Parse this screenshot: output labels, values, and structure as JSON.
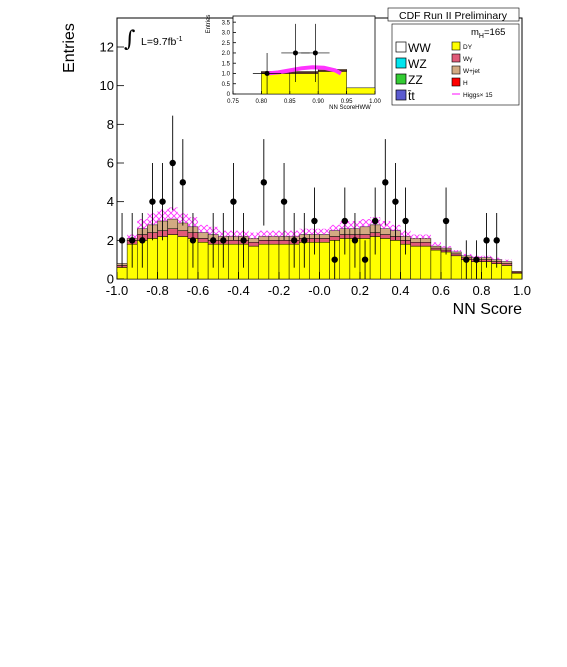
{
  "header": {
    "title": "CDF Run II Preliminary",
    "mass_label_prefix": "m",
    "mass_label_sub": "H",
    "mass_label_value": "=165",
    "lumi_prefix": "L=9.7fb",
    "lumi_exp": "-1"
  },
  "colors": {
    "WW": "#ffffff",
    "WZ": "#00e5ee",
    "ZZ": "#33cc33",
    "ttbar": "#5a5ad0",
    "DY": "#ffff00",
    "Wgamma": "#e05a78",
    "Wjet": "#d2aa82",
    "H": "#ff0000",
    "higgs_line": "#ff33ff",
    "data": "#000000"
  },
  "chart_data": [
    {
      "type": "bar",
      "title": "",
      "xlabel": "NN Score",
      "ylabel": "Entries",
      "xlim": [
        -1.0,
        1.0
      ],
      "ylim": [
        0,
        13.5
      ],
      "x_ticks": [
        "-1.0",
        "-0.8",
        "-0.6",
        "-0.4",
        "-0.2",
        "-0.0",
        "0.2",
        "0.4",
        "0.6",
        "0.8",
        "1.0"
      ],
      "y_ticks": [
        "0",
        "2",
        "4",
        "6",
        "8",
        "10",
        "12"
      ],
      "bin_edges": [
        -1.0,
        -0.95,
        -0.9,
        -0.85,
        -0.8,
        -0.75,
        -0.7,
        -0.65,
        -0.6,
        -0.55,
        -0.5,
        -0.45,
        -0.4,
        -0.35,
        -0.3,
        -0.25,
        -0.2,
        -0.15,
        -0.1,
        -0.05,
        0.0,
        0.05,
        0.1,
        0.15,
        0.2,
        0.25,
        0.3,
        0.35,
        0.4,
        0.45,
        0.5,
        0.55,
        0.6,
        0.65,
        0.7,
        0.75,
        0.8,
        0.85,
        0.9,
        0.95,
        1.0
      ],
      "series": [
        {
          "name": "DY",
          "values": [
            0.6,
            1.8,
            2.0,
            2.1,
            2.2,
            2.3,
            2.2,
            2.1,
            1.9,
            1.8,
            1.8,
            1.8,
            1.8,
            1.7,
            1.8,
            1.8,
            1.8,
            1.8,
            1.9,
            1.9,
            1.9,
            2.0,
            2.1,
            2.1,
            2.1,
            2.2,
            2.1,
            2.0,
            1.8,
            1.7,
            1.7,
            1.5,
            1.4,
            1.2,
            1.0,
            0.9,
            0.9,
            0.8,
            0.7,
            0.3
          ]
        },
        {
          "name": "Wγ",
          "values": [
            0.1,
            0.2,
            0.3,
            0.3,
            0.3,
            0.3,
            0.3,
            0.3,
            0.2,
            0.2,
            0.2,
            0.2,
            0.2,
            0.2,
            0.2,
            0.2,
            0.2,
            0.2,
            0.2,
            0.2,
            0.2,
            0.2,
            0.2,
            0.2,
            0.2,
            0.2,
            0.2,
            0.2,
            0.2,
            0.2,
            0.2,
            0.1,
            0.1,
            0.1,
            0.1,
            0.1,
            0.1,
            0.1,
            0.1,
            0.05
          ]
        },
        {
          "name": "W+jet",
          "values": [
            0.1,
            0.1,
            0.3,
            0.4,
            0.5,
            0.5,
            0.4,
            0.3,
            0.3,
            0.3,
            0.2,
            0.2,
            0.2,
            0.2,
            0.2,
            0.2,
            0.2,
            0.2,
            0.2,
            0.2,
            0.2,
            0.3,
            0.3,
            0.3,
            0.4,
            0.4,
            0.3,
            0.3,
            0.2,
            0.2,
            0.2,
            0.1,
            0.1,
            0.1,
            0.1,
            0.1,
            0.1,
            0.1,
            0.1,
            0.05
          ]
        },
        {
          "name": "Higgs× 15",
          "values": [
            0.0,
            0.2,
            0.5,
            0.6,
            0.6,
            0.6,
            0.5,
            0.5,
            0.4,
            0.4,
            0.3,
            0.3,
            0.3,
            0.3,
            0.3,
            0.3,
            0.3,
            0.3,
            0.3,
            0.3,
            0.3,
            0.3,
            0.4,
            0.4,
            0.4,
            0.4,
            0.4,
            0.3,
            0.3,
            0.2,
            0.2,
            0.2,
            0.1,
            0.1,
            0.1,
            0.1,
            0.1,
            0.1,
            0.1,
            0.0
          ]
        }
      ],
      "data": {
        "name": "data",
        "points": [
          {
            "x": -0.975,
            "y": 2
          },
          {
            "x": -0.925,
            "y": 2
          },
          {
            "x": -0.875,
            "y": 2
          },
          {
            "x": -0.825,
            "y": 4
          },
          {
            "x": -0.775,
            "y": 4
          },
          {
            "x": -0.725,
            "y": 6
          },
          {
            "x": -0.675,
            "y": 5
          },
          {
            "x": -0.625,
            "y": 2
          },
          {
            "x": -0.525,
            "y": 2
          },
          {
            "x": -0.475,
            "y": 2
          },
          {
            "x": -0.425,
            "y": 4
          },
          {
            "x": -0.375,
            "y": 2
          },
          {
            "x": -0.275,
            "y": 5
          },
          {
            "x": -0.175,
            "y": 4
          },
          {
            "x": -0.125,
            "y": 2
          },
          {
            "x": -0.075,
            "y": 2
          },
          {
            "x": -0.025,
            "y": 3
          },
          {
            "x": 0.075,
            "y": 1
          },
          {
            "x": 0.125,
            "y": 3
          },
          {
            "x": 0.175,
            "y": 2
          },
          {
            "x": 0.225,
            "y": 1
          },
          {
            "x": 0.275,
            "y": 3
          },
          {
            "x": 0.325,
            "y": 5
          },
          {
            "x": 0.375,
            "y": 4
          },
          {
            "x": 0.425,
            "y": 3
          },
          {
            "x": 0.625,
            "y": 3
          },
          {
            "x": 0.725,
            "y": 1
          },
          {
            "x": 0.775,
            "y": 1
          },
          {
            "x": 0.825,
            "y": 2
          },
          {
            "x": 0.875,
            "y": 2
          }
        ]
      }
    },
    {
      "type": "bar",
      "title": "",
      "xlabel": "NN ScoreHWW",
      "ylabel": "Entries",
      "xlim": [
        0.75,
        1.0
      ],
      "ylim": [
        0,
        3.8
      ],
      "x_ticks": [
        "0.75",
        "0.80",
        "0.85",
        "0.90",
        "0.95",
        "1.00"
      ],
      "y_ticks": [
        "0",
        "0.5",
        "1.0",
        "1.5",
        "2.0",
        "2.5",
        "3.0",
        "3.5"
      ],
      "bin_edges": [
        0.75,
        0.8,
        0.85,
        0.9,
        0.95,
        1.0
      ],
      "series": [
        {
          "name": "DY",
          "values": [
            0.0,
            1.0,
            1.0,
            1.1,
            0.3
          ]
        },
        {
          "name": "Wγ",
          "values": [
            0.0,
            0.05,
            0.05,
            0.05,
            0.0
          ]
        },
        {
          "name": "W+jet",
          "values": [
            0.0,
            0.05,
            0.05,
            0.05,
            0.0
          ]
        }
      ],
      "signal_curve": {
        "name": "Higgs× 15",
        "x": [
          0.81,
          0.83,
          0.85,
          0.87,
          0.89,
          0.91,
          0.93,
          0.94
        ],
        "y": [
          1.0,
          1.05,
          1.15,
          1.25,
          1.3,
          1.28,
          1.15,
          1.0
        ]
      },
      "data": {
        "name": "data",
        "points": [
          {
            "x": 0.81,
            "y": 1
          },
          {
            "x": 0.86,
            "y": 2
          },
          {
            "x": 0.895,
            "y": 2
          }
        ]
      }
    }
  ],
  "legend": {
    "placement": "top-right",
    "left_column": [
      {
        "label": "WW",
        "color_key": "WW"
      },
      {
        "label": "WZ",
        "color_key": "WZ"
      },
      {
        "label": "ZZ",
        "color_key": "ZZ"
      },
      {
        "label": "t̄t",
        "color_key": "ttbar"
      }
    ],
    "right_column": [
      {
        "label": "DY",
        "color_key": "DY"
      },
      {
        "label": "Wγ",
        "color_key": "Wgamma"
      },
      {
        "label": "W+jet",
        "color_key": "Wjet"
      },
      {
        "label": "H",
        "color_key": "H"
      },
      {
        "label": "Higgs× 15",
        "color_key": "higgs_line"
      }
    ]
  }
}
